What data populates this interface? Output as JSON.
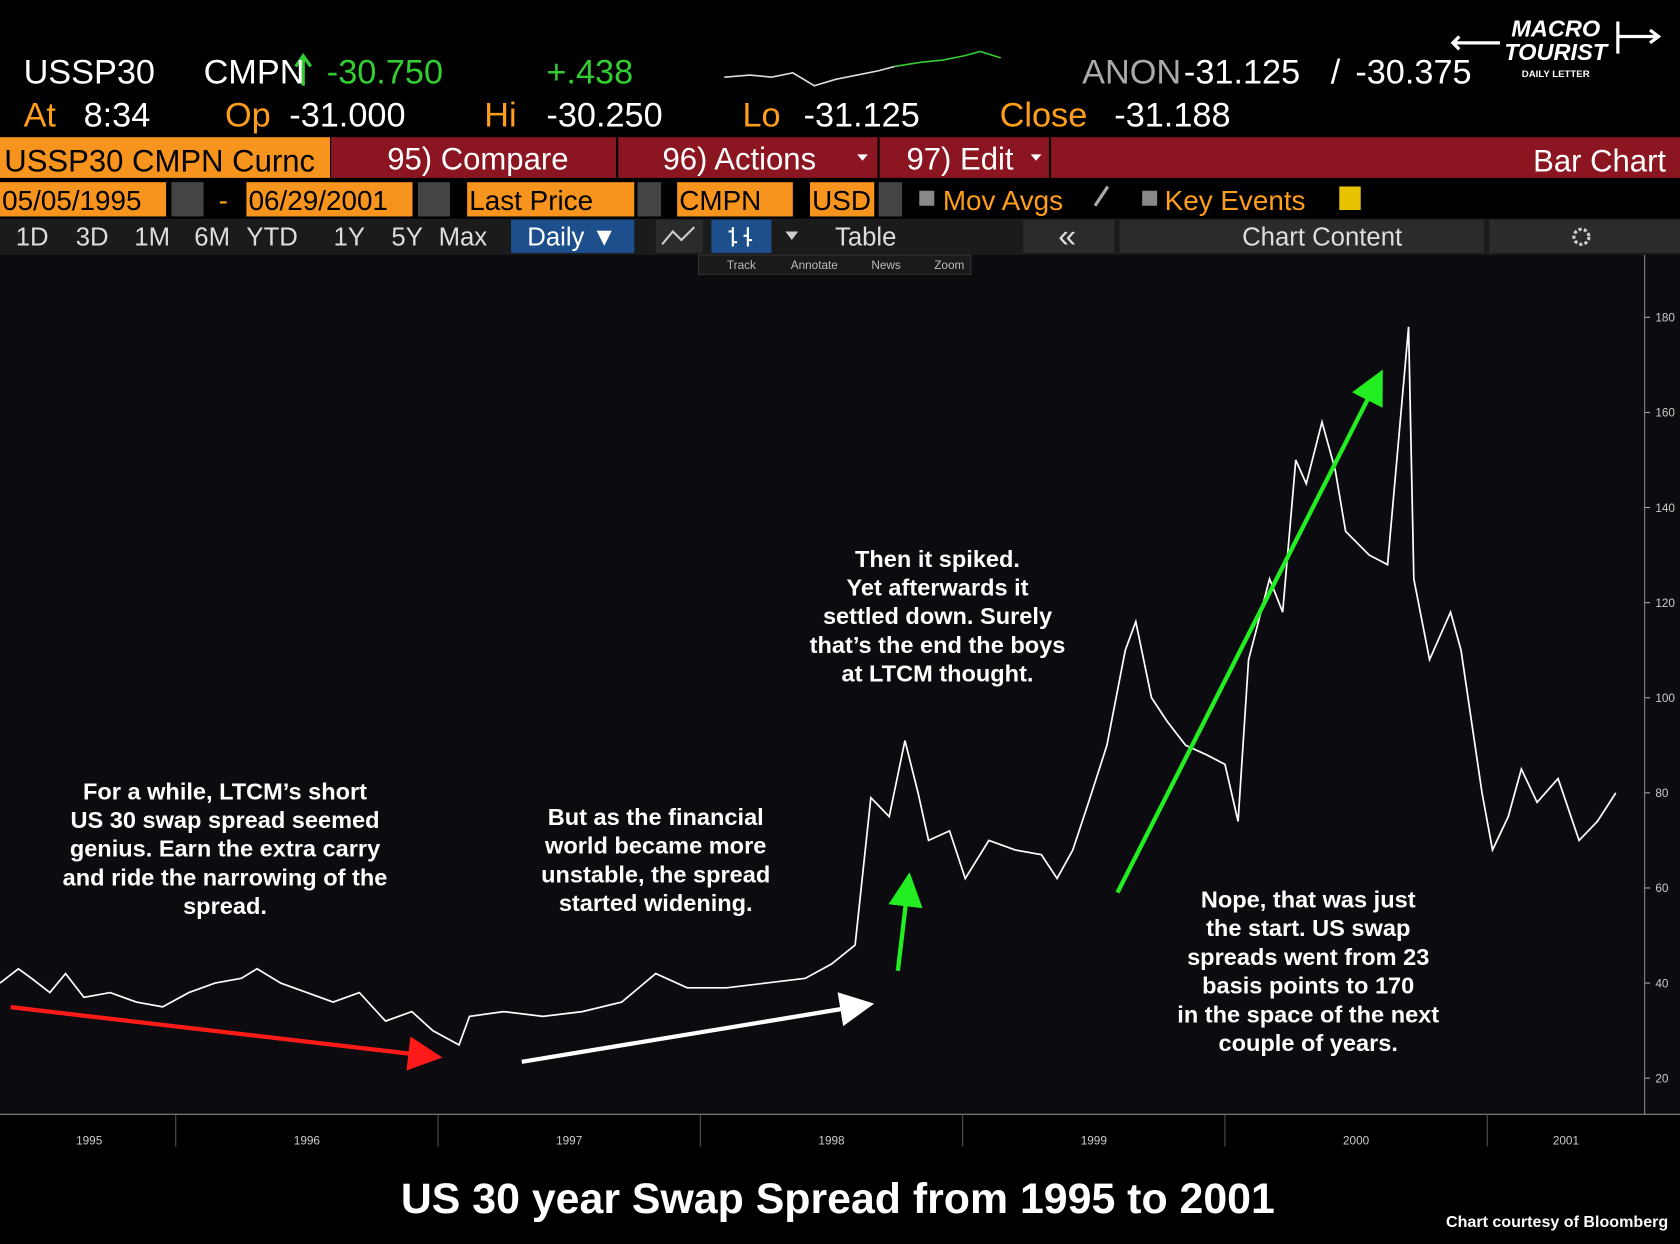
{
  "header": {
    "ticker": "USSP30",
    "source": "CMPN",
    "last": "-30.750",
    "change": "+.438",
    "anon_label": "ANON",
    "bid": "-31.125",
    "separator": "/",
    "ask": "-30.375",
    "at_label": "At",
    "time": "8:34",
    "open_label": "Op",
    "open": "-31.000",
    "high_label": "Hi",
    "high": "-30.250",
    "low_label": "Lo",
    "low": "-31.125",
    "close_label": "Close",
    "close": "-31.188"
  },
  "menu": {
    "security": "USSP30 CMPN Curnc",
    "compare": "95) Compare",
    "actions": "96) Actions",
    "edit": "97) Edit",
    "chart_kind": "Bar Chart"
  },
  "settings": {
    "start_date": "05/05/1995",
    "dash": "-",
    "end_date": "06/29/2001",
    "field": "Last Price",
    "pricing_source": "CMPN",
    "currency": "USD",
    "mov_avgs": "Mov Avgs",
    "key_events": "Key Events"
  },
  "tabs": {
    "ranges": [
      "1D",
      "3D",
      "1M",
      "6M",
      "YTD",
      "1Y",
      "5Y",
      "Max"
    ],
    "period": "Daily ▼",
    "table": "Table",
    "collapse": "«",
    "chart_content": "Chart Content"
  },
  "tools": [
    "Track",
    "Annotate",
    "News",
    "Zoom"
  ],
  "logo": {
    "line1": "MACRO",
    "line2": "TOURIST",
    "tagline": "DAILY LETTER"
  },
  "chart_data": {
    "type": "line",
    "title": "US 30 year Swap Spread from 1995 to 2001",
    "credit": "Chart courtesy of Bloomberg",
    "color": "#ffffff",
    "x": [
      1995.33,
      1995.4,
      1995.45,
      1995.52,
      1995.58,
      1995.65,
      1995.75,
      1995.85,
      1995.95,
      1996.05,
      1996.15,
      1996.25,
      1996.31,
      1996.4,
      1996.5,
      1996.6,
      1996.7,
      1996.8,
      1996.9,
      1996.98,
      1997.08,
      1997.12,
      1997.25,
      1997.4,
      1997.55,
      1997.7,
      1997.83,
      1997.95,
      1998.1,
      1998.25,
      1998.4,
      1998.5,
      1998.59,
      1998.65,
      1998.72,
      1998.78,
      1998.83,
      1998.87,
      1998.95,
      1999.01,
      1999.1,
      1999.2,
      1999.3,
      1999.36,
      1999.42,
      1999.48,
      1999.55,
      1999.62,
      1999.66,
      1999.72,
      1999.78,
      1999.85,
      1999.93,
      2000.0,
      2000.05,
      2000.09,
      2000.17,
      2000.22,
      2000.27,
      2000.31,
      2000.37,
      2000.42,
      2000.46,
      2000.55,
      2000.62,
      2000.7,
      2000.72,
      2000.78,
      2000.86,
      2000.9,
      2000.98,
      2001.02,
      2001.08,
      2001.13,
      2001.19,
      2001.27,
      2001.35,
      2001.42,
      2001.49
    ],
    "values": [
      40,
      43,
      41,
      38,
      42,
      37,
      38,
      36,
      35,
      38,
      40,
      41,
      43,
      40,
      38,
      36,
      38,
      32,
      34,
      30,
      27,
      33,
      34,
      33,
      34,
      36,
      42,
      39,
      39,
      40,
      41,
      44,
      48,
      79,
      75,
      91,
      80,
      70,
      72,
      62,
      70,
      68,
      67,
      62,
      68,
      78,
      90,
      110,
      116,
      100,
      95,
      90,
      88,
      86,
      74,
      108,
      125,
      118,
      150,
      145,
      158,
      148,
      135,
      130,
      128,
      178,
      125,
      108,
      118,
      110,
      80,
      68,
      75,
      85,
      78,
      83,
      70,
      74,
      80
    ],
    "xlim": [
      1995.33,
      2001.6
    ],
    "xticks": [
      {
        "value": 1995.67,
        "label": "1995"
      },
      {
        "value": 1996.5,
        "label": "1996"
      },
      {
        "value": 1997.5,
        "label": "1997"
      },
      {
        "value": 1998.5,
        "label": "1998"
      },
      {
        "value": 1999.5,
        "label": "1999"
      },
      {
        "value": 2000.5,
        "label": "2000"
      },
      {
        "value": 2001.3,
        "label": "2001"
      }
    ],
    "ylim": [
      12.4,
      193.1
    ],
    "yticks": [
      20,
      40,
      60,
      80,
      100,
      120,
      140,
      160,
      180
    ],
    "annotations": [
      {
        "lines": [
          "For a while, LTCM’s short",
          "US 30 swap spread seemed",
          "genius.  Earn the extra carry",
          "and ride the narrowing of the",
          "spread."
        ]
      },
      {
        "lines": [
          "But as the financial",
          "world became more",
          "unstable, the spread",
          "started widening."
        ]
      },
      {
        "lines": [
          "Then it spiked.",
          "Yet afterwards it",
          "settled down.  Surely",
          "that’s the end the boys",
          "at LTCM thought."
        ]
      },
      {
        "lines": [
          "Nope, that was just",
          "the start.  US swap",
          "spreads went from 23",
          "basis points to 170",
          "in the space of the next",
          "couple of years."
        ]
      }
    ]
  }
}
